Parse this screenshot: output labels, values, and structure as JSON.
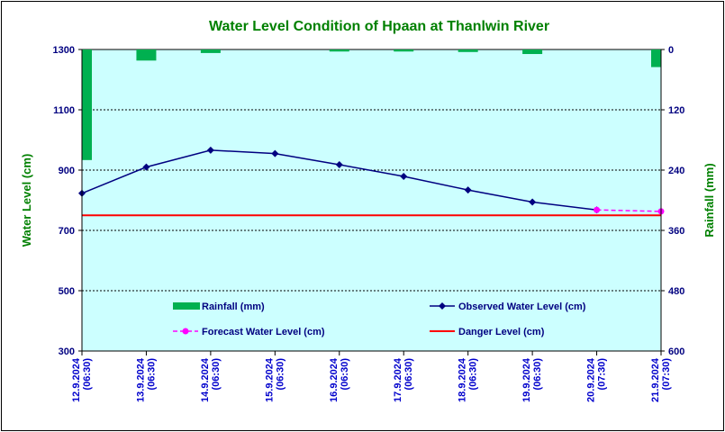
{
  "chart_data": {
    "type": "bar+line",
    "title": "Water Level Condition of Hpaan at Thanlwin River",
    "ylabel_left": "Water Level (cm)",
    "ylabel_right": "Rainfall (mm)",
    "ylim_left": [
      300,
      1300
    ],
    "yticks_left": [
      "1300",
      "1100",
      "900",
      "700",
      "500",
      "300"
    ],
    "ylim_right": [
      0,
      600
    ],
    "right_axis_inverted": true,
    "yticks_right": [
      "0",
      "120",
      "240",
      "360",
      "480",
      "600"
    ],
    "grid": "horizontal dashed",
    "categories": [
      [
        "12.9.2024",
        "(06:30)"
      ],
      [
        "13.9.2024",
        "(06:30)"
      ],
      [
        "14.9.2024",
        "(06:30)"
      ],
      [
        "15.9.2024",
        "(06:30)"
      ],
      [
        "16.9.2024",
        "(06:30)"
      ],
      [
        "17.9.2024",
        "(06:30)"
      ],
      [
        "18.9.2024",
        "(06:30)"
      ],
      [
        "19.9.2024",
        "(06:30)"
      ],
      [
        "20.9.2024",
        "(07:30)"
      ],
      [
        "21.9.2024",
        "(07:30)"
      ]
    ],
    "series": [
      {
        "name": "Rainfall (mm)",
        "kind": "bar",
        "axis": "right",
        "color": "#00b050",
        "values": [
          220,
          22,
          7,
          0,
          4,
          4,
          5,
          9,
          0,
          35
        ]
      },
      {
        "name": "Observed Water Level (cm)",
        "kind": "line",
        "axis": "left",
        "color": "#000080",
        "values": [
          823,
          910,
          966,
          955,
          918,
          879,
          834,
          794,
          768,
          null
        ]
      },
      {
        "name": "Forecast Water Level (cm)",
        "kind": "line-dashed",
        "axis": "left",
        "color": "#ff00ff",
        "values": [
          null,
          null,
          null,
          null,
          null,
          null,
          null,
          null,
          768,
          763
        ]
      },
      {
        "name": "Danger Level (cm)",
        "kind": "hline",
        "axis": "left",
        "color": "#ff0000",
        "value": 750
      }
    ],
    "legend_placement": "inside-bottom"
  }
}
